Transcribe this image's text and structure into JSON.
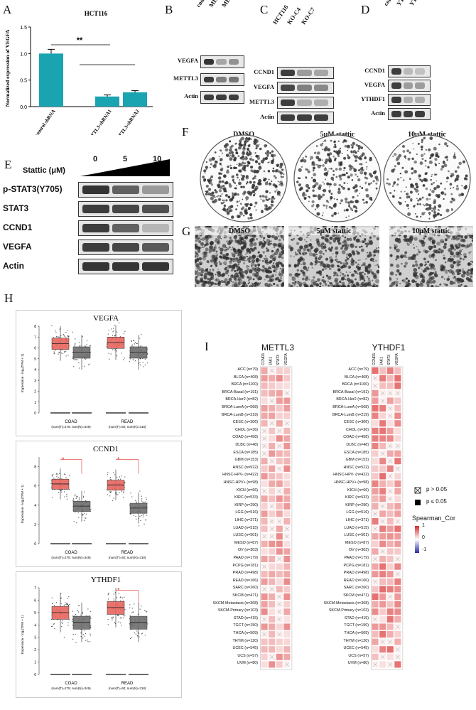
{
  "panelA": {
    "letter": "A",
    "chart_data": {
      "type": "bar",
      "title": "HCT116",
      "ylabel": "Normalized expression of VEGFA",
      "categories": [
        "control shRNA",
        "METTL3-shRNA1",
        "METTL3-shRNA2"
      ],
      "values": [
        1.0,
        0.19,
        0.27
      ],
      "errors": [
        0.08,
        0.03,
        0.03
      ],
      "ylim": [
        0,
        1.5
      ],
      "yticks": [
        "0.0",
        "0.5",
        "1.0",
        "1.5"
      ],
      "significance": "**",
      "bar_color": "#1aa3b0"
    }
  },
  "panelB": {
    "letter": "B",
    "lanes": [
      "control shRNA",
      "METTL3-shRNA1",
      "METTL3-shRNA2"
    ],
    "rows": [
      "VEGFA",
      "METTL3",
      "Actin"
    ]
  },
  "panelC": {
    "letter": "C",
    "lanes": [
      "HCT116",
      "KO-C4",
      "KO-C7"
    ],
    "rows": [
      "CCND1",
      "VEGFA",
      "METTL3",
      "Actin"
    ]
  },
  "panelD": {
    "letter": "D",
    "lanes": [
      "control shRNA",
      "YTHDF1-shRNA1",
      "YTHDF1-shRNA2"
    ],
    "rows": [
      "CCND1",
      "VEGFA",
      "YTHDF1",
      "Actin"
    ]
  },
  "panelE": {
    "letter": "E",
    "header": "Stattic (μM)",
    "doses": [
      "0",
      "5",
      "10"
    ],
    "rows": [
      "p-STAT3(Y705)",
      "STAT3",
      "CCND1",
      "VEGFA",
      "Actin"
    ]
  },
  "panelF": {
    "letter": "F",
    "labels": [
      "DMSO",
      "5μM stattic",
      "10μM stattic"
    ]
  },
  "panelG": {
    "letter": "G",
    "labels": [
      "DMSO",
      "5μM stattic",
      "10μM stattic"
    ]
  },
  "panelH": {
    "letter": "H",
    "ylabel": "Expression - log₂(TPM + 1)",
    "xcats": [
      "COAD",
      "READ"
    ],
    "xsubs": [
      "(num(T)=275; num(N)=349)",
      "(num(T)=92; num(N)=318)"
    ],
    "chart_data": [
      {
        "type": "box",
        "title": "VEGFA",
        "ylim": [
          0,
          8
        ],
        "yticks": [
          "0",
          "1",
          "2",
          "3",
          "4",
          "5",
          "6",
          "7",
          "8"
        ],
        "tumor_median": [
          6.4,
          6.5
        ],
        "normal_median": [
          5.6,
          5.6
        ],
        "significance": [
          "",
          ""
        ]
      },
      {
        "type": "box",
        "title": "CCND1",
        "ylim": [
          0,
          9
        ],
        "yticks": [
          "0",
          "2",
          "4",
          "6",
          "8"
        ],
        "tumor_median": [
          6.2,
          6.1
        ],
        "normal_median": [
          3.9,
          3.7
        ],
        "significance": [
          "*",
          "*"
        ]
      },
      {
        "type": "box",
        "title": "YTHDF1",
        "ylim": [
          0,
          7
        ],
        "yticks": [
          "0",
          "1",
          "2",
          "3",
          "4",
          "5",
          "6",
          "7"
        ],
        "tumor_median": [
          5.0,
          5.4
        ],
        "normal_median": [
          4.2,
          4.2
        ],
        "significance": [
          "",
          "*"
        ]
      }
    ]
  },
  "panelI": {
    "letter": "I",
    "chart_data": {
      "type": "heatmap",
      "titles": [
        "METTL3",
        "YTHDF1"
      ],
      "columns": [
        "CCND1",
        "JAK1",
        "STAT3",
        "VEGFA"
      ],
      "rows": [
        "ACC (n=79)",
        "BLCA (n=408)",
        "BRCA (n=1100)",
        "BRCA-Basal (n=191)",
        "BRCA-Her2 (n=82)",
        "BRCA-LumA (n=568)",
        "BRCA-LumB (n=219)",
        "CESC (n=306)",
        "CHOL (n=36)",
        "COAD (n=458)",
        "DLBC (n=48)",
        "ESCA (n=185)",
        "GBM (n=153)",
        "HNSC (n=522)",
        "HNSC-HPV- (n=422)",
        "HNSC-HPV+ (n=98)",
        "KICH (n=66)",
        "KIRC (n=533)",
        "KIRP (n=290)",
        "LGG (n=516)",
        "LIHC (n=371)",
        "LUAD (n=515)",
        "LUSC (n=501)",
        "MESO (n=87)",
        "OV (n=303)",
        "PAAD (n=179)",
        "PCPG (n=181)",
        "PRAD (n=498)",
        "READ (n=166)",
        "SARC (n=260)",
        "SKCM (n=471)",
        "SKCM-Metastasis (n=368)",
        "SKCM-Primary (n=103)",
        "STAD (n=415)",
        "TGCT (n=150)",
        "THCA (n=509)",
        "THYM (n=120)",
        "UCEC (n=545)",
        "UCS (n=57)",
        "UVM (n=80)"
      ],
      "legend_ns": "p > 0.05",
      "legend_sig": "p ≤ 0.05",
      "colorbar_title": "Spearman_Cor",
      "colorbar_ticks": [
        "1",
        "0",
        "-1"
      ]
    }
  }
}
